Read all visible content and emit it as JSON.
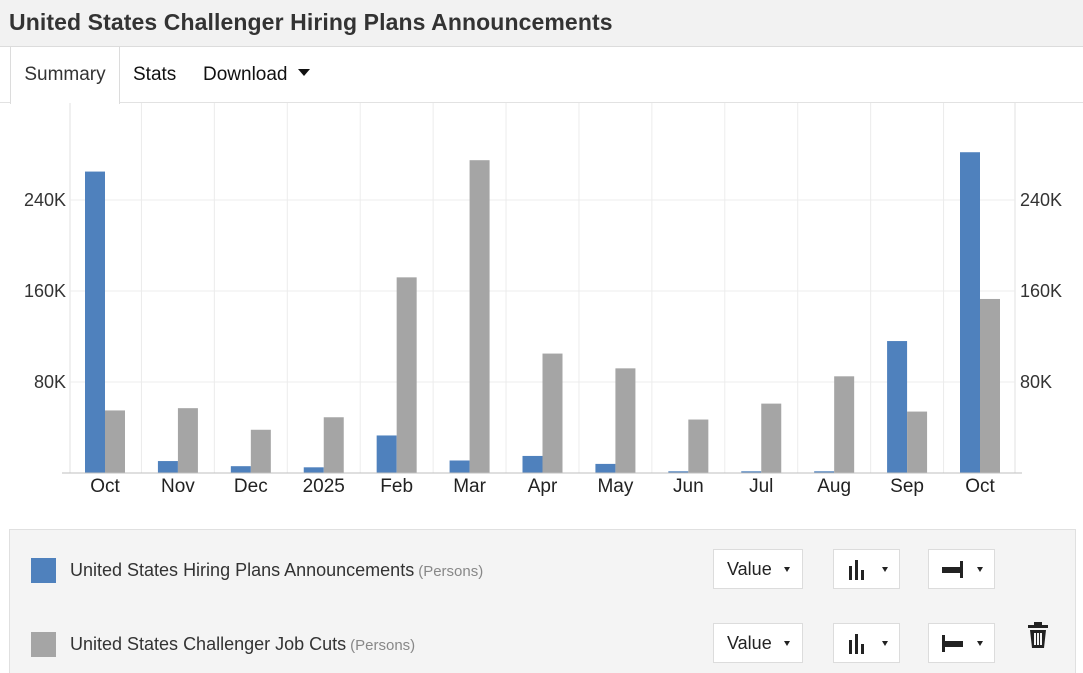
{
  "page": {
    "title": "United States Challenger Hiring Plans Announcements"
  },
  "tabs": [
    {
      "label": "Summary"
    },
    {
      "label": "Stats"
    },
    {
      "label": "Download"
    }
  ],
  "colors": {
    "series1": "#4f81bd",
    "series2": "#a5a5a5",
    "grid": "#e6e6e6",
    "axis": "#bfbfbf",
    "panel": "#f4f4f4"
  },
  "chart_data": {
    "type": "bar",
    "title": "",
    "xlabel": "",
    "ylabel": "",
    "categories": [
      "Oct",
      "Nov",
      "Dec",
      "2025",
      "Feb",
      "Mar",
      "Apr",
      "May",
      "Jun",
      "Jul",
      "Aug",
      "Sep",
      "Oct"
    ],
    "series": [
      {
        "name": "United States Hiring Plans Announcements",
        "unit": "(Persons)",
        "color": "#4f81bd",
        "values": [
          265000,
          10500,
          6000,
          5000,
          33000,
          11000,
          15000,
          8000,
          1500,
          1500,
          1500,
          116000,
          282000
        ]
      },
      {
        "name": "United States Challenger Job Cuts",
        "unit": "(Persons)",
        "color": "#a5a5a5",
        "values": [
          55000,
          57000,
          38000,
          49000,
          172000,
          275000,
          105000,
          92000,
          47000,
          61000,
          85000,
          54000,
          153000
        ]
      }
    ],
    "yticks": [
      80000,
      160000,
      240000
    ],
    "ytick_labels": [
      "80K",
      "160K",
      "240K"
    ],
    "ylim": [
      0,
      310000
    ],
    "grid": true,
    "legend_position": "bottom",
    "dual_axis": true
  },
  "legend": {
    "rows": [
      {
        "label": "United States Hiring Plans Announcements",
        "unit": "(Persons)",
        "value_label": "Value"
      },
      {
        "label": "United States Challenger Job Cuts",
        "unit": "(Persons)",
        "value_label": "Value"
      }
    ]
  }
}
